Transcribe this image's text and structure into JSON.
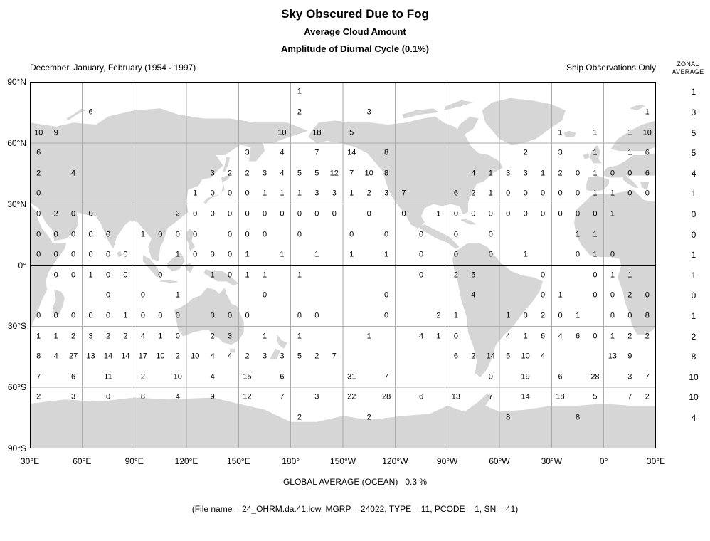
{
  "header": {
    "title": "Sky Obscured Due to Fog",
    "subtitle1": "Average Cloud Amount",
    "subtitle2": "Amplitude of Diurnal Cycle (0.1%)",
    "season_caption": "December, January, February (1954 - 1997)",
    "source_caption": "Ship Observations Only",
    "zonal_header_line1": "ZONAL",
    "zonal_header_line2": "AVERAGE"
  },
  "footer": {
    "global_average": "GLOBAL AVERAGE (OCEAN)   0.3 %",
    "file_info": "(File name = 24_OHRM.da.41.low, MGRP = 24022, TYPE = 11, PCODE = 1, SN = 41)"
  },
  "chart_data": {
    "type": "heatmap",
    "title": "Sky Obscured Due to Fog",
    "subtitle": "Average Cloud Amount - Amplitude of Diurnal Cycle (0.1%)",
    "legend": "values are amplitude of diurnal cycle in 0.1% units, plotted per 10-degree ocean box",
    "x_tick_labels": [
      "30°E",
      "60°E",
      "90°E",
      "120°E",
      "150°E",
      "180°",
      "150°W",
      "120°W",
      "90°W",
      "60°W",
      "30°W",
      "0°",
      "30°E"
    ],
    "y_tick_labels": [
      "90°N",
      "60°N",
      "30°N",
      "0°",
      "30°S",
      "60°S",
      "90°S"
    ],
    "grid": {
      "cols": 36,
      "rows_count": 18,
      "cell_size_deg": 10,
      "lon_start_deg_east": 30,
      "row_lat_labels": [
        "85N",
        "75N",
        "65N",
        "55N",
        "45N",
        "35N",
        "25N",
        "15N",
        "5N",
        "5S",
        "15S",
        "25S",
        "35S",
        "45S",
        "55S",
        "65S",
        "75S",
        "85S"
      ],
      "rows": [
        [
          [
            15,
            "1"
          ]
        ],
        [
          [
            3,
            "6"
          ],
          [
            15,
            "2"
          ],
          [
            19,
            "3"
          ],
          [
            35,
            "1"
          ]
        ],
        [
          [
            0,
            "10"
          ],
          [
            1,
            "9"
          ],
          [
            14,
            "10"
          ],
          [
            16,
            "18"
          ],
          [
            18,
            "5"
          ],
          [
            30,
            "1"
          ],
          [
            32,
            "1"
          ],
          [
            34,
            "1"
          ],
          [
            35,
            "10"
          ]
        ],
        [
          [
            0,
            "6"
          ],
          [
            12,
            "3"
          ],
          [
            14,
            "4"
          ],
          [
            16,
            "7"
          ],
          [
            18,
            "14"
          ],
          [
            20,
            "8"
          ],
          [
            28,
            "2"
          ],
          [
            30,
            "3"
          ],
          [
            32,
            "1"
          ],
          [
            34,
            "1"
          ],
          [
            35,
            "6"
          ]
        ],
        [
          [
            0,
            "2"
          ],
          [
            2,
            "4"
          ],
          [
            10,
            "3"
          ],
          [
            11,
            "2"
          ],
          [
            12,
            "2"
          ],
          [
            13,
            "3"
          ],
          [
            14,
            "4"
          ],
          [
            15,
            "5"
          ],
          [
            16,
            "5"
          ],
          [
            17,
            "12"
          ],
          [
            18,
            "7"
          ],
          [
            19,
            "10"
          ],
          [
            20,
            "8"
          ],
          [
            25,
            "4"
          ],
          [
            26,
            "1"
          ],
          [
            27,
            "3"
          ],
          [
            28,
            "3"
          ],
          [
            29,
            "1"
          ],
          [
            30,
            "2"
          ],
          [
            31,
            "0"
          ],
          [
            32,
            "1"
          ],
          [
            33,
            "0"
          ],
          [
            34,
            "0"
          ],
          [
            35,
            "6"
          ]
        ],
        [
          [
            0,
            "0"
          ],
          [
            9,
            "1"
          ],
          [
            10,
            "0"
          ],
          [
            11,
            "0"
          ],
          [
            12,
            "0"
          ],
          [
            13,
            "1"
          ],
          [
            14,
            "1"
          ],
          [
            15,
            "1"
          ],
          [
            16,
            "3"
          ],
          [
            17,
            "3"
          ],
          [
            18,
            "1"
          ],
          [
            19,
            "2"
          ],
          [
            20,
            "3"
          ],
          [
            21,
            "7"
          ],
          [
            24,
            "6"
          ],
          [
            25,
            "2"
          ],
          [
            26,
            "1"
          ],
          [
            27,
            "0"
          ],
          [
            28,
            "0"
          ],
          [
            29,
            "0"
          ],
          [
            30,
            "0"
          ],
          [
            31,
            "0"
          ],
          [
            32,
            "1"
          ],
          [
            33,
            "1"
          ],
          [
            34,
            "0"
          ],
          [
            35,
            "0"
          ]
        ],
        [
          [
            0,
            "0"
          ],
          [
            1,
            "2"
          ],
          [
            2,
            "0"
          ],
          [
            3,
            "0"
          ],
          [
            8,
            "2"
          ],
          [
            9,
            "0"
          ],
          [
            10,
            "0"
          ],
          [
            11,
            "0"
          ],
          [
            12,
            "0"
          ],
          [
            13,
            "0"
          ],
          [
            14,
            "0"
          ],
          [
            15,
            "0"
          ],
          [
            16,
            "0"
          ],
          [
            17,
            "0"
          ],
          [
            19,
            "0"
          ],
          [
            21,
            "0"
          ],
          [
            23,
            "1"
          ],
          [
            24,
            "0"
          ],
          [
            25,
            "0"
          ],
          [
            26,
            "0"
          ],
          [
            27,
            "0"
          ],
          [
            28,
            "0"
          ],
          [
            29,
            "0"
          ],
          [
            30,
            "0"
          ],
          [
            31,
            "0"
          ],
          [
            32,
            "0"
          ],
          [
            33,
            "1"
          ]
        ],
        [
          [
            0,
            "0"
          ],
          [
            1,
            "0"
          ],
          [
            2,
            "0"
          ],
          [
            3,
            "0"
          ],
          [
            4,
            "0"
          ],
          [
            6,
            "1"
          ],
          [
            7,
            "0"
          ],
          [
            8,
            "0"
          ],
          [
            9,
            "0"
          ],
          [
            11,
            "0"
          ],
          [
            12,
            "0"
          ],
          [
            13,
            "0"
          ],
          [
            15,
            "0"
          ],
          [
            18,
            "0"
          ],
          [
            20,
            "0"
          ],
          [
            22,
            "0"
          ],
          [
            24,
            "0"
          ],
          [
            26,
            "0"
          ],
          [
            31,
            "1"
          ],
          [
            32,
            "1"
          ]
        ],
        [
          [
            0,
            "0"
          ],
          [
            1,
            "0"
          ],
          [
            2,
            "0"
          ],
          [
            3,
            "0"
          ],
          [
            4,
            "0"
          ],
          [
            5,
            "0"
          ],
          [
            8,
            "1"
          ],
          [
            9,
            "0"
          ],
          [
            10,
            "0"
          ],
          [
            11,
            "0"
          ],
          [
            12,
            "1"
          ],
          [
            14,
            "1"
          ],
          [
            16,
            "1"
          ],
          [
            18,
            "1"
          ],
          [
            20,
            "1"
          ],
          [
            22,
            "0"
          ],
          [
            24,
            "0"
          ],
          [
            26,
            "0"
          ],
          [
            28,
            "1"
          ],
          [
            31,
            "0"
          ],
          [
            32,
            "1"
          ],
          [
            33,
            "0"
          ]
        ],
        [
          [
            1,
            "0"
          ],
          [
            2,
            "0"
          ],
          [
            3,
            "1"
          ],
          [
            4,
            "0"
          ],
          [
            5,
            "0"
          ],
          [
            7,
            "0"
          ],
          [
            10,
            "1"
          ],
          [
            11,
            "0"
          ],
          [
            12,
            "1"
          ],
          [
            13,
            "1"
          ],
          [
            15,
            "1"
          ],
          [
            22,
            "0"
          ],
          [
            24,
            "2"
          ],
          [
            25,
            "5"
          ],
          [
            29,
            "0"
          ],
          [
            32,
            "0"
          ],
          [
            33,
            "1"
          ],
          [
            34,
            "1"
          ]
        ],
        [
          [
            4,
            "0"
          ],
          [
            6,
            "0"
          ],
          [
            8,
            "1"
          ],
          [
            13,
            "0"
          ],
          [
            20,
            "0"
          ],
          [
            25,
            "4"
          ],
          [
            29,
            "0"
          ],
          [
            30,
            "1"
          ],
          [
            32,
            "0"
          ],
          [
            33,
            "0"
          ],
          [
            34,
            "2"
          ],
          [
            35,
            "0"
          ]
        ],
        [
          [
            0,
            "0"
          ],
          [
            1,
            "0"
          ],
          [
            2,
            "0"
          ],
          [
            3,
            "0"
          ],
          [
            4,
            "0"
          ],
          [
            5,
            "1"
          ],
          [
            6,
            "0"
          ],
          [
            7,
            "0"
          ],
          [
            8,
            "0"
          ],
          [
            10,
            "0"
          ],
          [
            11,
            "0"
          ],
          [
            12,
            "0"
          ],
          [
            15,
            "0"
          ],
          [
            16,
            "0"
          ],
          [
            20,
            "0"
          ],
          [
            23,
            "2"
          ],
          [
            24,
            "1"
          ],
          [
            27,
            "1"
          ],
          [
            28,
            "0"
          ],
          [
            29,
            "2"
          ],
          [
            30,
            "0"
          ],
          [
            31,
            "1"
          ],
          [
            33,
            "0"
          ],
          [
            34,
            "0"
          ],
          [
            35,
            "8"
          ]
        ],
        [
          [
            0,
            "1"
          ],
          [
            1,
            "1"
          ],
          [
            2,
            "2"
          ],
          [
            3,
            "3"
          ],
          [
            4,
            "2"
          ],
          [
            5,
            "2"
          ],
          [
            6,
            "4"
          ],
          [
            7,
            "1"
          ],
          [
            8,
            "0"
          ],
          [
            10,
            "2"
          ],
          [
            11,
            "3"
          ],
          [
            13,
            "1"
          ],
          [
            15,
            "1"
          ],
          [
            19,
            "1"
          ],
          [
            22,
            "4"
          ],
          [
            23,
            "1"
          ],
          [
            24,
            "0"
          ],
          [
            27,
            "4"
          ],
          [
            28,
            "1"
          ],
          [
            29,
            "6"
          ],
          [
            30,
            "4"
          ],
          [
            31,
            "6"
          ],
          [
            32,
            "0"
          ],
          [
            33,
            "1"
          ],
          [
            34,
            "2"
          ],
          [
            35,
            "2"
          ]
        ],
        [
          [
            0,
            "8"
          ],
          [
            1,
            "4"
          ],
          [
            2,
            "27"
          ],
          [
            3,
            "13"
          ],
          [
            4,
            "14"
          ],
          [
            5,
            "14"
          ],
          [
            6,
            "17"
          ],
          [
            7,
            "10"
          ],
          [
            8,
            "2"
          ],
          [
            9,
            "10"
          ],
          [
            10,
            "4"
          ],
          [
            11,
            "4"
          ],
          [
            12,
            "2"
          ],
          [
            13,
            "3"
          ],
          [
            14,
            "3"
          ],
          [
            15,
            "5"
          ],
          [
            16,
            "2"
          ],
          [
            17,
            "7"
          ],
          [
            24,
            "6"
          ],
          [
            25,
            "2"
          ],
          [
            26,
            "14"
          ],
          [
            27,
            "5"
          ],
          [
            28,
            "10"
          ],
          [
            29,
            "4"
          ],
          [
            33,
            "13"
          ],
          [
            34,
            "9"
          ]
        ],
        [
          [
            0,
            "7"
          ],
          [
            2,
            "6"
          ],
          [
            4,
            "11"
          ],
          [
            6,
            "2"
          ],
          [
            8,
            "10"
          ],
          [
            10,
            "4"
          ],
          [
            12,
            "15"
          ],
          [
            14,
            "6"
          ],
          [
            18,
            "31"
          ],
          [
            20,
            "7"
          ],
          [
            26,
            "0"
          ],
          [
            28,
            "19"
          ],
          [
            30,
            "6"
          ],
          [
            32,
            "28"
          ],
          [
            34,
            "3"
          ],
          [
            35,
            "7"
          ]
        ],
        [
          [
            0,
            "2"
          ],
          [
            2,
            "3"
          ],
          [
            4,
            "0"
          ],
          [
            6,
            "8"
          ],
          [
            8,
            "4"
          ],
          [
            10,
            "9"
          ],
          [
            12,
            "12"
          ],
          [
            14,
            "7"
          ],
          [
            16,
            "3"
          ],
          [
            18,
            "22"
          ],
          [
            20,
            "28"
          ],
          [
            22,
            "6"
          ],
          [
            24,
            "13"
          ],
          [
            26,
            "7"
          ],
          [
            28,
            "14"
          ],
          [
            30,
            "18"
          ],
          [
            32,
            "5"
          ],
          [
            34,
            "7"
          ],
          [
            35,
            "2"
          ]
        ],
        [
          [
            15,
            "2"
          ],
          [
            19,
            "2"
          ],
          [
            27,
            "8"
          ],
          [
            31,
            "8"
          ]
        ],
        []
      ]
    },
    "zonal_averages": [
      "1",
      "3",
      "5",
      "5",
      "4",
      "1",
      "0",
      "0",
      "1",
      "1",
      "0",
      "1",
      "2",
      "8",
      "10",
      "10",
      "4",
      ""
    ],
    "global_average_ocean": "0.3 %",
    "colors": {
      "land": "#d6d6d6",
      "grid_line": "#ababab",
      "frame": "#000000",
      "text": "#000000"
    }
  }
}
